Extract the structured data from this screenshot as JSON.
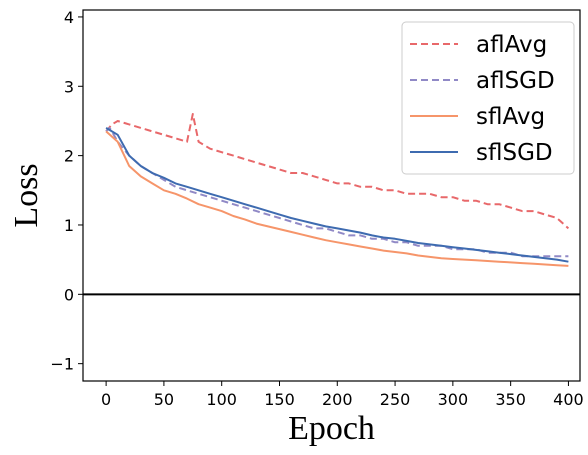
{
  "chart_data": {
    "type": "line",
    "xlabel": "Epoch",
    "ylabel": "Loss",
    "xlim": [
      -20,
      410
    ],
    "ylim": [
      -1.25,
      4.1
    ],
    "xticks": [
      0,
      50,
      100,
      150,
      200,
      250,
      300,
      350,
      400
    ],
    "yticks": [
      -1,
      0,
      1,
      2,
      3,
      4
    ],
    "xtick_labels": [
      "0",
      "50",
      "100",
      "150",
      "200",
      "250",
      "300",
      "350",
      "400"
    ],
    "ytick_labels": [
      "−1",
      "0",
      "1",
      "2",
      "3",
      "4"
    ],
    "legend_position": "top-right",
    "reference_line": {
      "y": 0,
      "color": "#000000"
    },
    "series": [
      {
        "name": "aflAvg",
        "style": "dashed",
        "color": "#e8686a",
        "x": [
          0,
          5,
          10,
          20,
          30,
          40,
          50,
          60,
          70,
          75,
          80,
          90,
          100,
          110,
          120,
          130,
          140,
          150,
          160,
          170,
          180,
          190,
          200,
          210,
          220,
          230,
          240,
          250,
          260,
          270,
          280,
          290,
          300,
          310,
          320,
          330,
          340,
          350,
          360,
          370,
          380,
          390,
          400
        ],
        "y": [
          2.35,
          2.45,
          2.5,
          2.45,
          2.4,
          2.35,
          2.3,
          2.25,
          2.2,
          2.6,
          2.2,
          2.1,
          2.05,
          2.0,
          1.95,
          1.9,
          1.85,
          1.8,
          1.75,
          1.75,
          1.7,
          1.65,
          1.6,
          1.6,
          1.55,
          1.55,
          1.5,
          1.5,
          1.45,
          1.45,
          1.45,
          1.4,
          1.4,
          1.35,
          1.35,
          1.3,
          1.3,
          1.25,
          1.2,
          1.2,
          1.15,
          1.1,
          0.95
        ]
      },
      {
        "name": "aflSGD",
        "style": "dashed",
        "color": "#9089c6",
        "x": [
          0,
          3,
          5,
          10,
          20,
          30,
          40,
          50,
          60,
          70,
          80,
          90,
          100,
          110,
          120,
          130,
          140,
          150,
          160,
          170,
          180,
          190,
          200,
          210,
          220,
          230,
          240,
          250,
          260,
          270,
          280,
          290,
          300,
          310,
          320,
          330,
          340,
          350,
          360,
          370,
          380,
          390,
          400
        ],
        "y": [
          2.35,
          2.4,
          2.35,
          2.2,
          2.0,
          1.85,
          1.75,
          1.65,
          1.55,
          1.5,
          1.45,
          1.4,
          1.35,
          1.3,
          1.25,
          1.2,
          1.15,
          1.1,
          1.05,
          1.0,
          0.95,
          0.95,
          0.9,
          0.85,
          0.85,
          0.8,
          0.8,
          0.75,
          0.75,
          0.7,
          0.7,
          0.7,
          0.65,
          0.65,
          0.65,
          0.6,
          0.6,
          0.6,
          0.55,
          0.55,
          0.55,
          0.55,
          0.55
        ]
      },
      {
        "name": "sflAvg",
        "style": "solid",
        "color": "#f6956a",
        "x": [
          0,
          10,
          20,
          30,
          40,
          50,
          60,
          70,
          80,
          90,
          100,
          110,
          120,
          130,
          140,
          150,
          160,
          170,
          180,
          190,
          200,
          210,
          220,
          230,
          240,
          250,
          260,
          270,
          280,
          290,
          300,
          310,
          320,
          330,
          340,
          350,
          360,
          370,
          380,
          390,
          400
        ],
        "y": [
          2.35,
          2.2,
          1.85,
          1.7,
          1.6,
          1.5,
          1.45,
          1.38,
          1.3,
          1.25,
          1.2,
          1.13,
          1.08,
          1.02,
          0.98,
          0.94,
          0.9,
          0.86,
          0.82,
          0.78,
          0.75,
          0.72,
          0.69,
          0.66,
          0.63,
          0.61,
          0.59,
          0.56,
          0.54,
          0.52,
          0.51,
          0.5,
          0.49,
          0.48,
          0.47,
          0.46,
          0.45,
          0.44,
          0.43,
          0.42,
          0.41
        ]
      },
      {
        "name": "sflSGD",
        "style": "solid",
        "color": "#3e6bb0",
        "x": [
          0,
          10,
          20,
          30,
          40,
          50,
          60,
          70,
          80,
          90,
          100,
          110,
          120,
          130,
          140,
          150,
          160,
          170,
          180,
          190,
          200,
          210,
          220,
          230,
          240,
          250,
          260,
          270,
          280,
          290,
          300,
          310,
          320,
          330,
          340,
          350,
          360,
          370,
          380,
          390,
          400
        ],
        "y": [
          2.4,
          2.3,
          2.0,
          1.85,
          1.75,
          1.68,
          1.6,
          1.55,
          1.5,
          1.45,
          1.4,
          1.35,
          1.3,
          1.25,
          1.2,
          1.15,
          1.1,
          1.06,
          1.02,
          0.98,
          0.95,
          0.92,
          0.89,
          0.85,
          0.82,
          0.8,
          0.77,
          0.74,
          0.72,
          0.7,
          0.68,
          0.66,
          0.64,
          0.62,
          0.6,
          0.58,
          0.56,
          0.54,
          0.52,
          0.5,
          0.47
        ]
      }
    ]
  }
}
